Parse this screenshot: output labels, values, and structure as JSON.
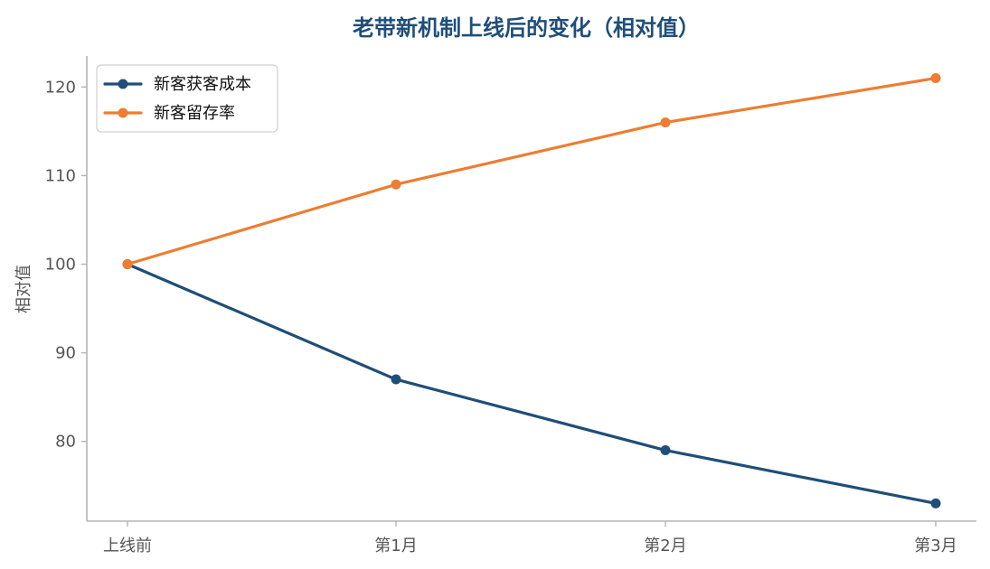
{
  "chart_data": {
    "type": "line",
    "title": "老带新机制上线后的变化（相对值）",
    "xlabel": "",
    "ylabel": "相对值",
    "categories": [
      "上线前",
      "第1月",
      "第2月",
      "第3月"
    ],
    "yticks": [
      80,
      90,
      100,
      110,
      120
    ],
    "ylim": [
      71,
      123.5
    ],
    "grid": false,
    "legend_position": "top-left",
    "series": [
      {
        "name": "新客获客成本",
        "values": [
          100,
          87,
          79,
          73
        ],
        "color": "#1f4e79"
      },
      {
        "name": "新客留存率",
        "values": [
          100,
          109,
          116,
          121
        ],
        "color": "#ed7d31"
      }
    ]
  }
}
